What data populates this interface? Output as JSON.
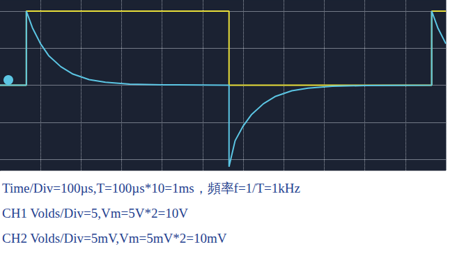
{
  "chart_data": {
    "type": "line",
    "xlim": [
      0,
      1100
    ],
    "xticks": [
      0,
      100,
      200,
      300,
      400,
      500,
      600,
      700,
      800,
      900,
      1000,
      1100
    ],
    "ylim": [
      -2.3,
      2.3
    ],
    "yticks": [
      -2,
      -1,
      0,
      1,
      2
    ],
    "grid": true,
    "tick_labels": false,
    "series": [
      {
        "color": "#e8de3a",
        "line_style": "solid",
        "x": [
          0,
          65,
          65,
          565,
          565,
          1065,
          1065,
          1100
        ],
        "values": [
          0,
          0,
          2,
          2,
          0,
          0,
          2,
          2
        ]
      },
      {
        "color": "#5cc6e4",
        "line_style": "solid",
        "x": [
          0,
          65,
          65,
          80,
          100,
          120,
          150,
          180,
          220,
          260,
          320,
          400,
          565,
          565,
          580,
          600,
          620,
          650,
          680,
          720,
          760,
          820,
          900,
          1065,
          1065,
          1080,
          1100
        ],
        "values": [
          0,
          0,
          2,
          1.55,
          1.12,
          0.8,
          0.5,
          0.3,
          0.15,
          0.08,
          0.03,
          0.01,
          0,
          -2.2,
          -1.5,
          -1.1,
          -0.8,
          -0.5,
          -0.3,
          -0.15,
          -0.08,
          -0.03,
          -0.01,
          0,
          2,
          1.55,
          1.12
        ]
      }
    ]
  },
  "caption": [
    "Time/Div=100µs,T=100µs*10=1ms，頻率f=1/T=1kHz",
    "CH1 Volds/Div=5,Vm=5V*2=10V",
    "CH2 Volds/Div=5mV,Vm=5mV*2=10mV"
  ]
}
